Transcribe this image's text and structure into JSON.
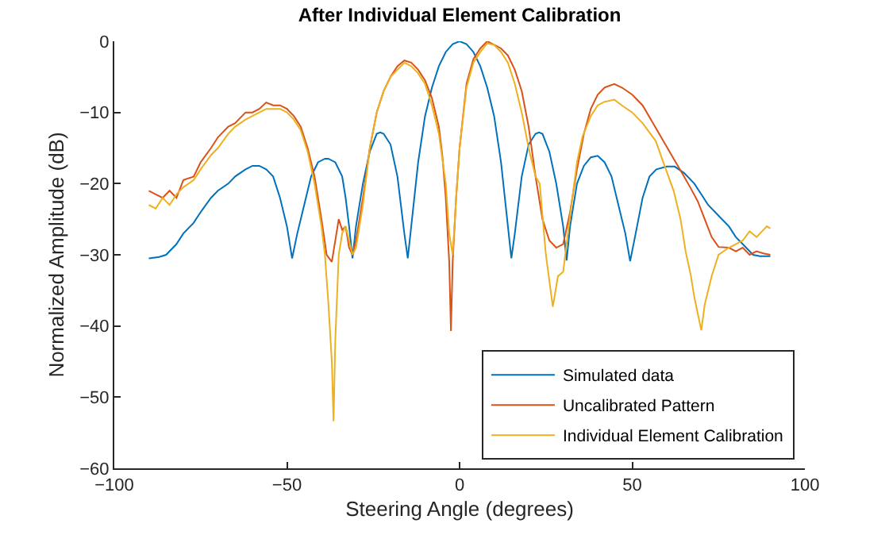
{
  "chart_data": {
    "type": "line",
    "title": "After Individual Element Calibration",
    "xlabel": "Steering Angle (degrees)",
    "ylabel": "Normalized Amplitude (dB)",
    "xlim": [
      -100,
      100
    ],
    "xticks": [
      -100,
      -50,
      0,
      50,
      100
    ],
    "ylim": [
      -60,
      0
    ],
    "yticks": [
      -60,
      -50,
      -40,
      -30,
      -20,
      -10,
      0
    ],
    "grid": false,
    "legend": "bottom right",
    "line_style": "solid",
    "marker": "none",
    "series": [
      {
        "name": "Simulated data",
        "color": "#0072bd",
        "x": [
          -90,
          -87,
          -85,
          -82,
          -80,
          -77,
          -75,
          -72,
          -70,
          -67,
          -65,
          -62,
          -60,
          -58,
          -56,
          -54,
          -52,
          -50,
          -48.5,
          -47,
          -45,
          -43,
          -41,
          -39,
          -38,
          -36,
          -34,
          -33,
          -32,
          -31,
          -30,
          -28,
          -26,
          -24,
          -23,
          -22,
          -20,
          -18,
          -17,
          -16,
          -15,
          -14,
          -12,
          -10,
          -8,
          -6,
          -4,
          -2,
          0,
          2,
          4,
          6,
          8,
          10,
          12,
          14,
          15,
          16,
          17,
          18,
          20,
          22,
          23,
          24,
          26,
          28,
          30,
          31,
          32,
          34,
          36,
          38,
          40,
          42,
          44,
          46,
          48,
          49.4,
          51,
          53,
          55,
          57,
          60,
          62.3,
          65,
          68,
          70,
          72,
          75,
          78,
          80,
          82,
          85,
          87,
          90
        ],
        "values": [
          -30.5,
          -30.3,
          -30,
          -28.5,
          -27,
          -25.5,
          -24,
          -22,
          -21,
          -20,
          -19,
          -18,
          -17.5,
          -17.5,
          -18,
          -19,
          -22,
          -26,
          -30.5,
          -27,
          -23,
          -19,
          -17,
          -16.5,
          -16.5,
          -17,
          -19,
          -22,
          -26,
          -30.5,
          -26,
          -20,
          -15.5,
          -13,
          -12.8,
          -13,
          -14.5,
          -19,
          -23,
          -27,
          -30.5,
          -26,
          -17,
          -10.5,
          -6.5,
          -3.5,
          -1.5,
          -0.4,
          0,
          -0.4,
          -1.5,
          -3.5,
          -6.5,
          -10.5,
          -17,
          -26,
          -30.5,
          -27,
          -23,
          -19,
          -14.5,
          -13,
          -12.8,
          -13,
          -15.5,
          -20,
          -26,
          -30.8,
          -26,
          -20,
          -17.5,
          -16.3,
          -16.1,
          -17,
          -19,
          -23,
          -27,
          -30.9,
          -27,
          -22,
          -19,
          -18,
          -17.6,
          -17.6,
          -18.5,
          -20,
          -21.5,
          -23,
          -24.5,
          -26,
          -27.5,
          -28.5,
          -30,
          -30.2,
          -30.2
        ]
      },
      {
        "name": "Uncalibrated Pattern",
        "color": "#d95319",
        "x": [
          -90,
          -88,
          -86,
          -84,
          -82,
          -80,
          -77,
          -75,
          -72,
          -70,
          -67,
          -65,
          -62,
          -60,
          -58,
          -56,
          -54,
          -52,
          -50,
          -48,
          -46,
          -44,
          -42,
          -40,
          -38.5,
          -37,
          -36,
          -35,
          -34,
          -33,
          -32,
          -31,
          -30,
          -28,
          -26,
          -24,
          -22,
          -20,
          -18,
          -16,
          -14,
          -12,
          -10,
          -8,
          -6,
          -5,
          -4,
          -3,
          -2.5,
          -2,
          -1,
          0,
          2,
          4,
          6,
          8,
          10,
          12,
          14,
          16,
          18,
          20,
          22,
          24,
          26,
          28,
          30,
          32,
          34,
          36,
          38,
          40,
          42,
          44.8,
          47,
          50,
          53,
          56,
          59,
          62,
          65,
          67,
          69,
          71,
          73,
          75,
          78,
          80,
          82,
          84,
          86,
          88,
          90
        ],
        "values": [
          -21,
          -21.5,
          -22,
          -21,
          -22,
          -19.5,
          -19,
          -17,
          -15,
          -13.5,
          -12,
          -11.5,
          -10,
          -10,
          -9.5,
          -8.6,
          -9,
          -9,
          -9.5,
          -10.5,
          -12,
          -15,
          -19,
          -25,
          -30,
          -31,
          -28,
          -25,
          -26.5,
          -26,
          -29,
          -30,
          -28,
          -22,
          -15,
          -10,
          -7,
          -5,
          -3.5,
          -2.7,
          -3,
          -4,
          -5.5,
          -8,
          -12,
          -16,
          -22,
          -31,
          -40.7,
          -31,
          -22,
          -15,
          -6,
          -2.5,
          -1,
          0,
          -0.5,
          -1,
          -2,
          -4,
          -7,
          -12,
          -19,
          -25,
          -28,
          -29,
          -28.5,
          -24,
          -18,
          -13,
          -9.5,
          -7.5,
          -6.5,
          -6,
          -6.5,
          -7.5,
          -9,
          -11.5,
          -14,
          -16.5,
          -19,
          -20.7,
          -22.5,
          -25,
          -27.5,
          -28.9,
          -29,
          -29.5,
          -29,
          -30,
          -29.5,
          -29.8,
          -30
        ]
      },
      {
        "name": "Individual Element Calibration",
        "color": "#edb120",
        "x": [
          -90,
          -88,
          -86,
          -84,
          -82,
          -80,
          -77,
          -75,
          -72,
          -70,
          -67,
          -65,
          -62,
          -60,
          -58,
          -56,
          -54,
          -52,
          -50,
          -48,
          -46,
          -44,
          -42,
          -40,
          -39,
          -38,
          -37,
          -36.5,
          -36,
          -35,
          -34,
          -33,
          -32,
          -31,
          -30,
          -28,
          -26,
          -24,
          -22,
          -20,
          -18,
          -16,
          -14,
          -12,
          -10,
          -8,
          -6,
          -4,
          -3,
          -2,
          -1,
          0,
          2,
          4,
          6,
          8,
          10,
          12,
          14,
          16,
          18,
          20,
          22,
          23.2,
          25,
          27,
          28.5,
          30,
          32.4,
          34,
          35.6,
          38,
          40,
          42,
          44.8,
          47,
          50,
          53,
          56.8,
          59,
          62,
          64,
          65.5,
          67,
          68,
          70,
          71,
          73,
          75,
          78,
          80,
          82,
          84,
          86,
          88,
          89,
          90
        ],
        "values": [
          -23,
          -23.5,
          -22,
          -23,
          -21.5,
          -20.5,
          -19.5,
          -18,
          -16,
          -15,
          -13,
          -12,
          -11,
          -10.5,
          -10,
          -9.5,
          -9.5,
          -9.5,
          -10,
          -11,
          -12.5,
          -15.5,
          -20,
          -26,
          -30,
          -36.8,
          -45,
          -53.4,
          -42,
          -30,
          -27,
          -26,
          -28,
          -30,
          -29,
          -23,
          -15,
          -10,
          -7,
          -5,
          -4,
          -3,
          -3.5,
          -4.5,
          -6,
          -9,
          -13,
          -20,
          -27,
          -30,
          -22,
          -15,
          -6.5,
          -3,
          -1.5,
          -0.3,
          -0.5,
          -1.5,
          -3,
          -6,
          -10,
          -15,
          -19,
          -20,
          -30,
          -37.3,
          -33,
          -32.4,
          -23,
          -17,
          -13.4,
          -10.5,
          -9,
          -8.5,
          -8.2,
          -9,
          -10,
          -11.5,
          -14,
          -17,
          -21,
          -25,
          -29.6,
          -33,
          -36,
          -40.6,
          -37,
          -33,
          -30,
          -29,
          -28.5,
          -28,
          -26.7,
          -27.5,
          -26.5,
          -26,
          -26.3
        ]
      }
    ]
  }
}
